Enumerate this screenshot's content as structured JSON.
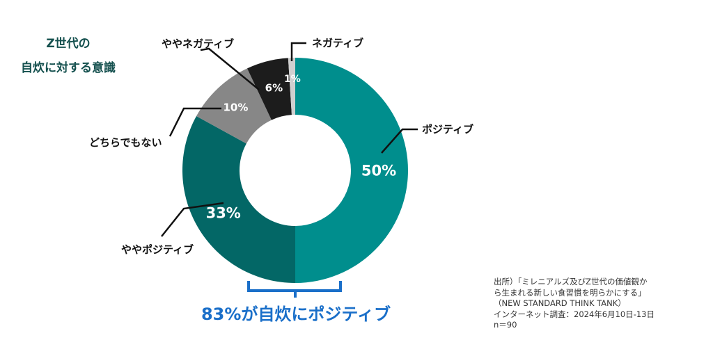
{
  "title": {
    "line1": "Z世代の",
    "line2": "自炊に対する意識"
  },
  "chart_data": {
    "type": "pie",
    "style": "donut",
    "start": "top, clockwise",
    "categories": [
      "ポジティブ",
      "ややポジティブ",
      "どちらでもない",
      "ややネガティブ",
      "ネガティブ"
    ],
    "values": [
      50,
      33,
      10,
      6,
      1
    ],
    "value_labels": [
      "50%",
      "33%",
      "10%",
      "6%",
      "1%"
    ],
    "colors": [
      "#008e8d",
      "#036766",
      "#878787",
      "#1c1c1c",
      "#cfcfcf"
    ]
  },
  "callout": {
    "text": "83%が自炊にポジティブ",
    "color": "#1a6fc9"
  },
  "source": {
    "lines": [
      "出所）「ミレニアルズ及びZ世代の価値観か",
      "ら生まれる新しい食習慣を明らかにする」",
      "（NEW STANDARD THINK TANK）",
      "インターネット調査：2024年6月10日-13日",
      "n＝90"
    ]
  }
}
